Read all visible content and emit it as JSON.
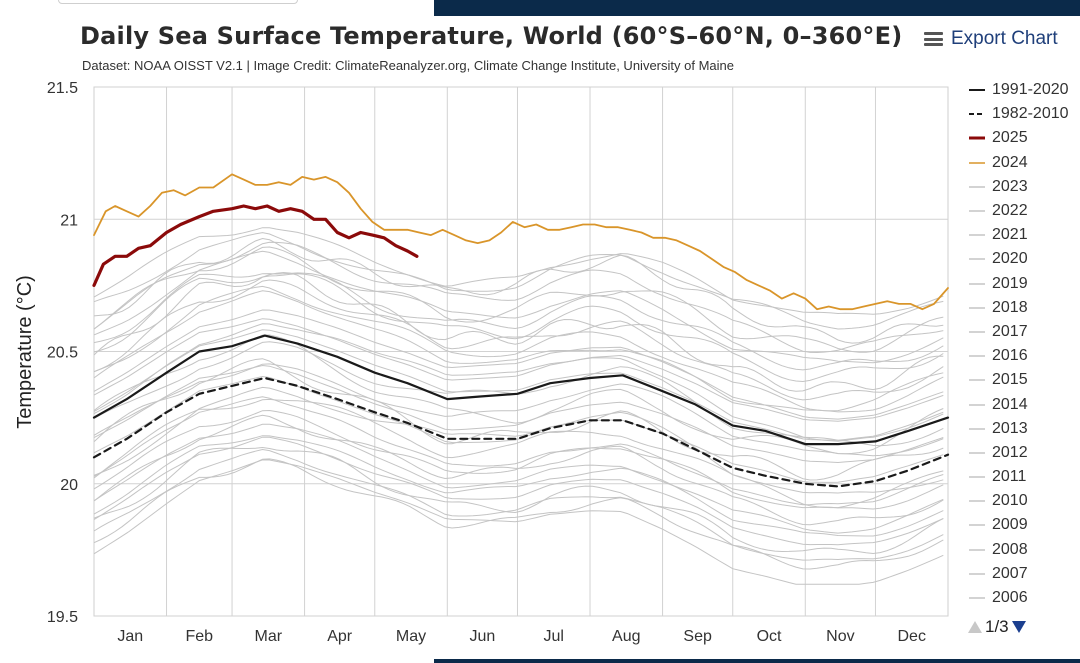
{
  "header": {
    "title": "Daily Sea Surface Temperature, World (60°S–60°N, 0–360°E)",
    "subtitle": "Dataset: NOAA OISST V2.1 | Image Credit: ClimateReanalyzer.org, Climate Change Institute, University of Maine",
    "export_label": "Export Chart",
    "export_icon": "hamburger-menu-icon"
  },
  "legend_pager": {
    "label": "1/3",
    "up_icon": "triangle-up-icon",
    "down_icon": "triangle-down-icon"
  },
  "colors": {
    "avg_1991_2020": "#1a1a1a",
    "avg_1982_2010": "#1a1a1a",
    "y2025": "#8b0a0a",
    "y2024": "#d9952a",
    "past_years": "#c4c4c4",
    "top_bar": "#0b2a4a",
    "export_text": "#1f3f7a"
  },
  "chart_data": {
    "type": "line",
    "title": "Daily Sea Surface Temperature, World (60°S–60°N, 0–360°E)",
    "ylabel": "Temperature (°C)",
    "xlabel": "",
    "ylim": [
      19.5,
      21.5
    ],
    "yticks": [
      19.5,
      20,
      20.5,
      21,
      21.5
    ],
    "ytick_labels": [
      "19.5",
      "20",
      "20.5",
      "21",
      "21.5"
    ],
    "x_day_range": [
      1,
      366
    ],
    "months": [
      "Jan",
      "Feb",
      "Mar",
      "Apr",
      "May",
      "Jun",
      "Jul",
      "Aug",
      "Sep",
      "Oct",
      "Nov",
      "Dec"
    ],
    "grid": true,
    "legend_position": "right",
    "series": [
      {
        "name": "1991-2020",
        "style": "solid-black",
        "points": [
          [
            1,
            20.25
          ],
          [
            15,
            20.32
          ],
          [
            32,
            20.42
          ],
          [
            46,
            20.5
          ],
          [
            60,
            20.52
          ],
          [
            74,
            20.56
          ],
          [
            88,
            20.53
          ],
          [
            105,
            20.48
          ],
          [
            121,
            20.42
          ],
          [
            135,
            20.38
          ],
          [
            152,
            20.32
          ],
          [
            166,
            20.33
          ],
          [
            182,
            20.34
          ],
          [
            196,
            20.38
          ],
          [
            213,
            20.4
          ],
          [
            227,
            20.41
          ],
          [
            244,
            20.35
          ],
          [
            258,
            20.3
          ],
          [
            274,
            20.22
          ],
          [
            288,
            20.2
          ],
          [
            305,
            20.15
          ],
          [
            319,
            20.15
          ],
          [
            335,
            20.16
          ],
          [
            349,
            20.2
          ],
          [
            366,
            20.25
          ]
        ]
      },
      {
        "name": "1982-2010",
        "style": "dashed-black",
        "points": [
          [
            1,
            20.1
          ],
          [
            15,
            20.17
          ],
          [
            32,
            20.27
          ],
          [
            46,
            20.34
          ],
          [
            60,
            20.37
          ],
          [
            74,
            20.4
          ],
          [
            88,
            20.37
          ],
          [
            105,
            20.32
          ],
          [
            121,
            20.27
          ],
          [
            135,
            20.23
          ],
          [
            152,
            20.17
          ],
          [
            166,
            20.17
          ],
          [
            182,
            20.17
          ],
          [
            196,
            20.21
          ],
          [
            213,
            20.24
          ],
          [
            227,
            20.24
          ],
          [
            244,
            20.19
          ],
          [
            258,
            20.13
          ],
          [
            274,
            20.06
          ],
          [
            288,
            20.03
          ],
          [
            305,
            20.0
          ],
          [
            319,
            19.99
          ],
          [
            335,
            20.01
          ],
          [
            349,
            20.05
          ],
          [
            366,
            20.11
          ]
        ]
      },
      {
        "name": "2025",
        "style": "thick-red",
        "points": [
          [
            1,
            20.75
          ],
          [
            5,
            20.83
          ],
          [
            10,
            20.86
          ],
          [
            15,
            20.86
          ],
          [
            20,
            20.89
          ],
          [
            25,
            20.9
          ],
          [
            32,
            20.95
          ],
          [
            38,
            20.98
          ],
          [
            46,
            21.01
          ],
          [
            52,
            21.03
          ],
          [
            60,
            21.04
          ],
          [
            65,
            21.05
          ],
          [
            70,
            21.04
          ],
          [
            75,
            21.05
          ],
          [
            80,
            21.03
          ],
          [
            85,
            21.04
          ],
          [
            90,
            21.03
          ],
          [
            95,
            21.0
          ],
          [
            100,
            21.0
          ],
          [
            105,
            20.95
          ],
          [
            110,
            20.93
          ],
          [
            115,
            20.95
          ],
          [
            120,
            20.94
          ],
          [
            125,
            20.93
          ],
          [
            130,
            20.9
          ],
          [
            135,
            20.88
          ],
          [
            139,
            20.86
          ]
        ]
      },
      {
        "name": "2024",
        "style": "orange",
        "points": [
          [
            1,
            20.94
          ],
          [
            6,
            21.03
          ],
          [
            10,
            21.05
          ],
          [
            15,
            21.03
          ],
          [
            20,
            21.01
          ],
          [
            25,
            21.05
          ],
          [
            30,
            21.1
          ],
          [
            35,
            21.11
          ],
          [
            40,
            21.09
          ],
          [
            46,
            21.12
          ],
          [
            52,
            21.12
          ],
          [
            60,
            21.17
          ],
          [
            65,
            21.15
          ],
          [
            70,
            21.13
          ],
          [
            75,
            21.13
          ],
          [
            80,
            21.14
          ],
          [
            85,
            21.13
          ],
          [
            90,
            21.16
          ],
          [
            95,
            21.15
          ],
          [
            100,
            21.16
          ],
          [
            105,
            21.14
          ],
          [
            110,
            21.1
          ],
          [
            115,
            21.04
          ],
          [
            120,
            20.99
          ],
          [
            125,
            20.96
          ],
          [
            130,
            20.96
          ],
          [
            135,
            20.96
          ],
          [
            140,
            20.95
          ],
          [
            145,
            20.94
          ],
          [
            150,
            20.96
          ],
          [
            155,
            20.94
          ],
          [
            160,
            20.92
          ],
          [
            165,
            20.91
          ],
          [
            170,
            20.92
          ],
          [
            175,
            20.95
          ],
          [
            180,
            20.99
          ],
          [
            185,
            20.97
          ],
          [
            190,
            20.98
          ],
          [
            195,
            20.96
          ],
          [
            200,
            20.96
          ],
          [
            205,
            20.97
          ],
          [
            210,
            20.98
          ],
          [
            215,
            20.98
          ],
          [
            220,
            20.97
          ],
          [
            225,
            20.97
          ],
          [
            230,
            20.96
          ],
          [
            235,
            20.95
          ],
          [
            240,
            20.93
          ],
          [
            245,
            20.93
          ],
          [
            250,
            20.92
          ],
          [
            255,
            20.9
          ],
          [
            260,
            20.88
          ],
          [
            265,
            20.85
          ],
          [
            270,
            20.82
          ],
          [
            275,
            20.8
          ],
          [
            280,
            20.77
          ],
          [
            285,
            20.75
          ],
          [
            290,
            20.73
          ],
          [
            295,
            20.7
          ],
          [
            300,
            20.72
          ],
          [
            305,
            20.7
          ],
          [
            310,
            20.66
          ],
          [
            315,
            20.67
          ],
          [
            320,
            20.66
          ],
          [
            325,
            20.66
          ],
          [
            330,
            20.67
          ],
          [
            335,
            20.68
          ],
          [
            340,
            20.69
          ],
          [
            345,
            20.68
          ],
          [
            350,
            20.68
          ],
          [
            355,
            20.66
          ],
          [
            360,
            20.68
          ],
          [
            366,
            20.74
          ]
        ]
      }
    ],
    "legend_years_gray": [
      "2023",
      "2022",
      "2021",
      "2020",
      "2019",
      "2018",
      "2017",
      "2016",
      "2015",
      "2014",
      "2013",
      "2012",
      "2011",
      "2010",
      "2009",
      "2008",
      "2007",
      "2006"
    ]
  }
}
